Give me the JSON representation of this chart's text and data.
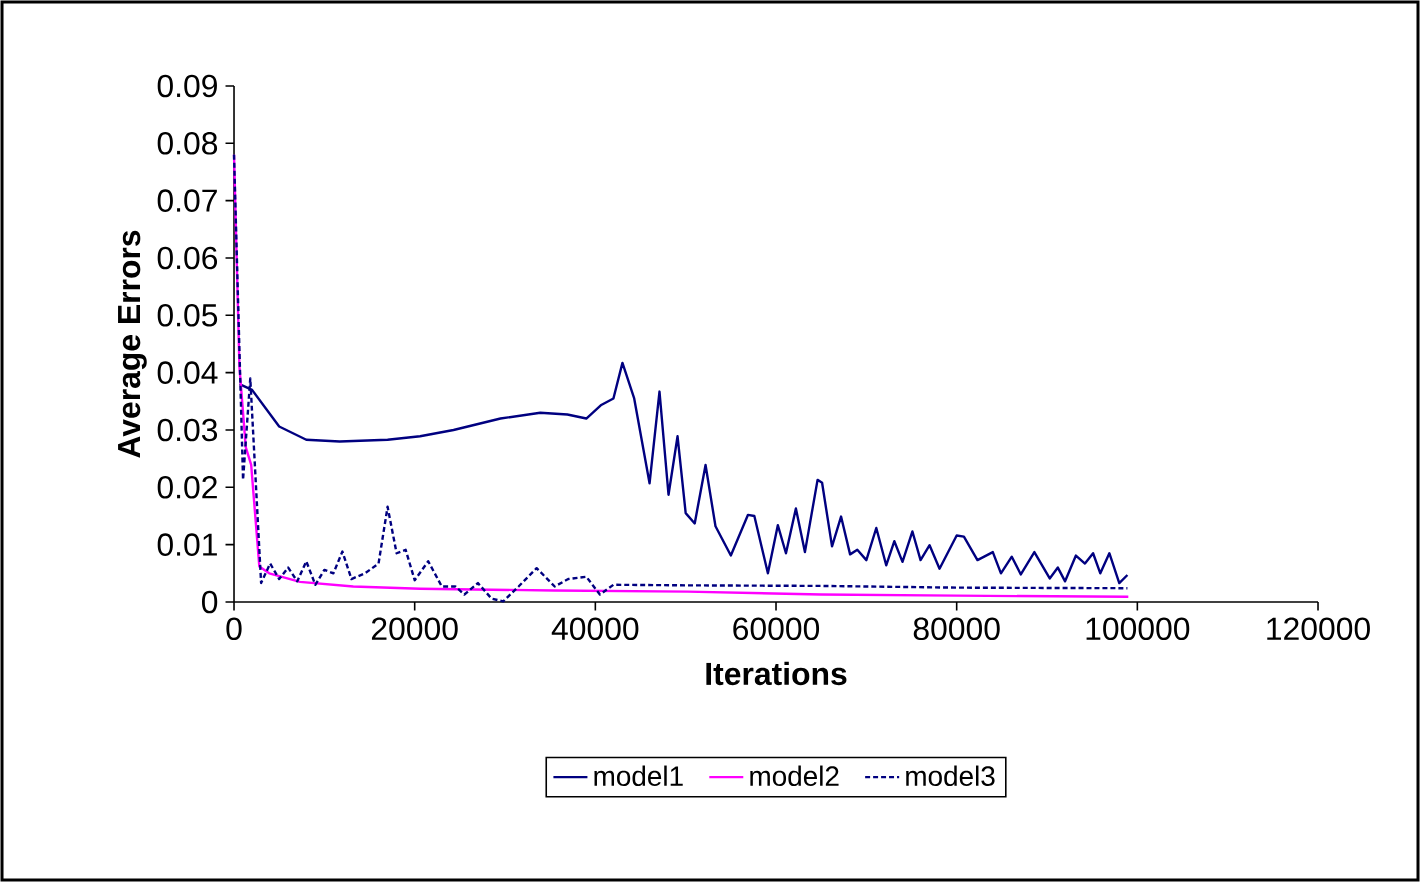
{
  "chart_data": {
    "type": "line",
    "xlabel": "Iterations",
    "ylabel": "Average Errors",
    "xlim": [
      0,
      120000
    ],
    "xticks": [
      0,
      20000,
      40000,
      60000,
      80000,
      100000,
      120000
    ],
    "ylim": [
      0,
      0.09
    ],
    "yticks": [
      0,
      0.01,
      0.02,
      0.03,
      0.04,
      0.05,
      0.06,
      0.07,
      0.08,
      0.09
    ],
    "grid": false,
    "legend": "bottom",
    "marker": "none",
    "series": [
      {
        "name": "model1",
        "color": "#000080",
        "line_style": "solid",
        "x": [
          600,
          2000,
          5000,
          8000,
          11700,
          17000,
          20600,
          24300,
          29500,
          33900,
          36900,
          39000,
          40600,
          42000,
          43000,
          44300,
          46000,
          47100,
          48100,
          49100,
          50000,
          51000,
          52200,
          53300,
          55000,
          56900,
          57600,
          59100,
          60200,
          61100,
          62200,
          63200,
          64600,
          65100,
          66200,
          67200,
          68200,
          69000,
          70000,
          71100,
          72200,
          73100,
          74000,
          75100,
          76000,
          77000,
          78100,
          80000,
          80800,
          82300,
          84000,
          84900,
          86100,
          87100,
          88600,
          90300,
          91200,
          92000,
          93200,
          94200,
          95100,
          95900,
          96900,
          98000,
          98900
        ],
        "values": [
          0.038,
          0.037,
          0.0306,
          0.0283,
          0.028,
          0.0283,
          0.0289,
          0.03,
          0.032,
          0.033,
          0.0327,
          0.032,
          0.0343,
          0.0355,
          0.0417,
          0.0355,
          0.0207,
          0.0367,
          0.0187,
          0.0289,
          0.0155,
          0.0137,
          0.0239,
          0.0132,
          0.0081,
          0.0152,
          0.015,
          0.005,
          0.0134,
          0.0085,
          0.0163,
          0.0087,
          0.0213,
          0.0208,
          0.0097,
          0.0149,
          0.0083,
          0.0091,
          0.0073,
          0.0129,
          0.0064,
          0.0106,
          0.007,
          0.0123,
          0.0073,
          0.0099,
          0.0058,
          0.0116,
          0.0114,
          0.0073,
          0.0087,
          0.005,
          0.0079,
          0.0048,
          0.0087,
          0.0041,
          0.006,
          0.0036,
          0.0081,
          0.0067,
          0.0085,
          0.005,
          0.0085,
          0.0033,
          0.0047
        ]
      },
      {
        "name": "model2",
        "color": "#ff00ff",
        "line_style": "solid",
        "x": [
          0,
          600,
          1300,
          1900,
          2800,
          3900,
          7300,
          13200,
          20600,
          35400,
          50200,
          65000,
          80000,
          99000
        ],
        "values": [
          0.078,
          0.041,
          0.027,
          0.0239,
          0.0062,
          0.005,
          0.0035,
          0.0027,
          0.0023,
          0.002,
          0.0018,
          0.0013,
          0.0011,
          0.0009
        ]
      },
      {
        "name": "model3",
        "color": "#000080",
        "line_style": "dotted",
        "x": [
          0,
          1000,
          1800,
          3000,
          4000,
          5000,
          6000,
          7000,
          8000,
          9000,
          10000,
          11000,
          12000,
          13000,
          14500,
          16000,
          17000,
          18000,
          19000,
          20000,
          21500,
          23000,
          24500,
          25500,
          27000,
          28500,
          29800,
          31500,
          33500,
          35500,
          37000,
          39000,
          40500,
          42000,
          50000,
          65000,
          80000,
          98900
        ],
        "values": [
          0.078,
          0.0213,
          0.039,
          0.0033,
          0.0067,
          0.004,
          0.006,
          0.0036,
          0.0071,
          0.003,
          0.0056,
          0.005,
          0.0088,
          0.004,
          0.005,
          0.0067,
          0.0166,
          0.0085,
          0.0091,
          0.0038,
          0.0071,
          0.0027,
          0.0027,
          0.0013,
          0.0033,
          0.0006,
          0.0001,
          0.0027,
          0.0059,
          0.0027,
          0.004,
          0.0044,
          0.0013,
          0.003,
          0.0029,
          0.0028,
          0.0025,
          0.0024
        ]
      }
    ]
  }
}
